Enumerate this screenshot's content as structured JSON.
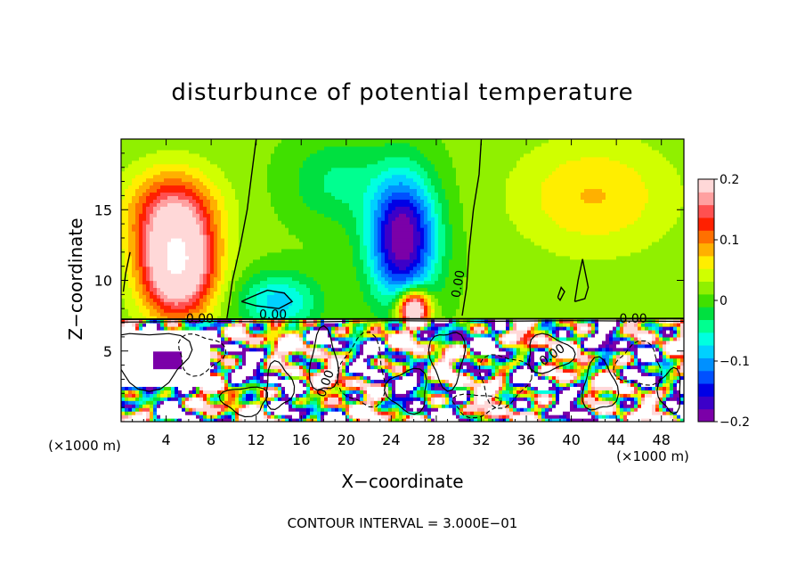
{
  "chart_data": {
    "type": "heatmap",
    "title": "disturbunce of potential temperature",
    "xlabel": "X−coordinate",
    "ylabel": "Z−coordinate",
    "x_unit_left": "(×1000 m)",
    "x_unit_right": "(×1000 m)",
    "footer": "CONTOUR INTERVAL = 3.000E−01",
    "xlim": [
      0,
      50
    ],
    "ylim": [
      0,
      20
    ],
    "x_ticks": [
      "4",
      "8",
      "12",
      "16",
      "20",
      "24",
      "28",
      "32",
      "36",
      "40",
      "44",
      "48"
    ],
    "y_ticks": [
      "5",
      "10",
      "15"
    ],
    "colorbar": {
      "range": [
        -0.2,
        0.2
      ],
      "tick_labels": [
        "0.2",
        "0.1",
        "0",
        "−0.1",
        "−0.2"
      ],
      "tick_values": [
        0.2,
        0.1,
        0,
        -0.1,
        -0.2
      ],
      "colors": [
        "#7b00a8",
        "#3c00c8",
        "#0000e6",
        "#0050ff",
        "#0090ff",
        "#00d0ff",
        "#00ffe0",
        "#00ff90",
        "#00e040",
        "#40e000",
        "#90f000",
        "#d0ff00",
        "#ffee00",
        "#ffb000",
        "#ff7000",
        "#ff2000",
        "#ff5050",
        "#ffa0a0",
        "#ffd8d8"
      ]
    },
    "contour_labels": [
      {
        "text": "0.00",
        "x": 7,
        "y": 7.0
      },
      {
        "text": "0.00",
        "x": 13.5,
        "y": 7.3
      },
      {
        "text": "0.00",
        "x": 30.3,
        "y": 9.7
      },
      {
        "text": "0.00",
        "x": 45.5,
        "y": 7.0
      },
      {
        "text": "0.00",
        "x": 38.5,
        "y": 4.5
      },
      {
        "text": "0.00",
        "x": 18.5,
        "y": 2.6
      }
    ],
    "features": [
      {
        "kind": "warm",
        "x": 5,
        "z": 11,
        "peak": 0.25,
        "sx": 3.2,
        "sz": 3.5
      },
      {
        "kind": "warm",
        "x": 4.5,
        "z": 15,
        "peak": 0.12,
        "sx": 4.0,
        "sz": 3.0
      },
      {
        "kind": "cold",
        "x": 25,
        "z": 13,
        "peak": -0.22,
        "sx": 3.0,
        "sz": 4.5
      },
      {
        "kind": "cold",
        "x": 14,
        "z": 8.5,
        "peak": -0.1,
        "sx": 3.5,
        "sz": 2.0
      },
      {
        "kind": "warm",
        "x": 26,
        "z": 8,
        "peak": 0.28,
        "sx": 1.4,
        "sz": 1.3
      },
      {
        "kind": "warm",
        "x": 42,
        "z": 16,
        "peak": 0.06,
        "sx": 7,
        "sz": 4
      },
      {
        "kind": "cold",
        "x": 19,
        "z": 17,
        "peak": -0.05,
        "sx": 4,
        "sz": 3
      }
    ]
  }
}
